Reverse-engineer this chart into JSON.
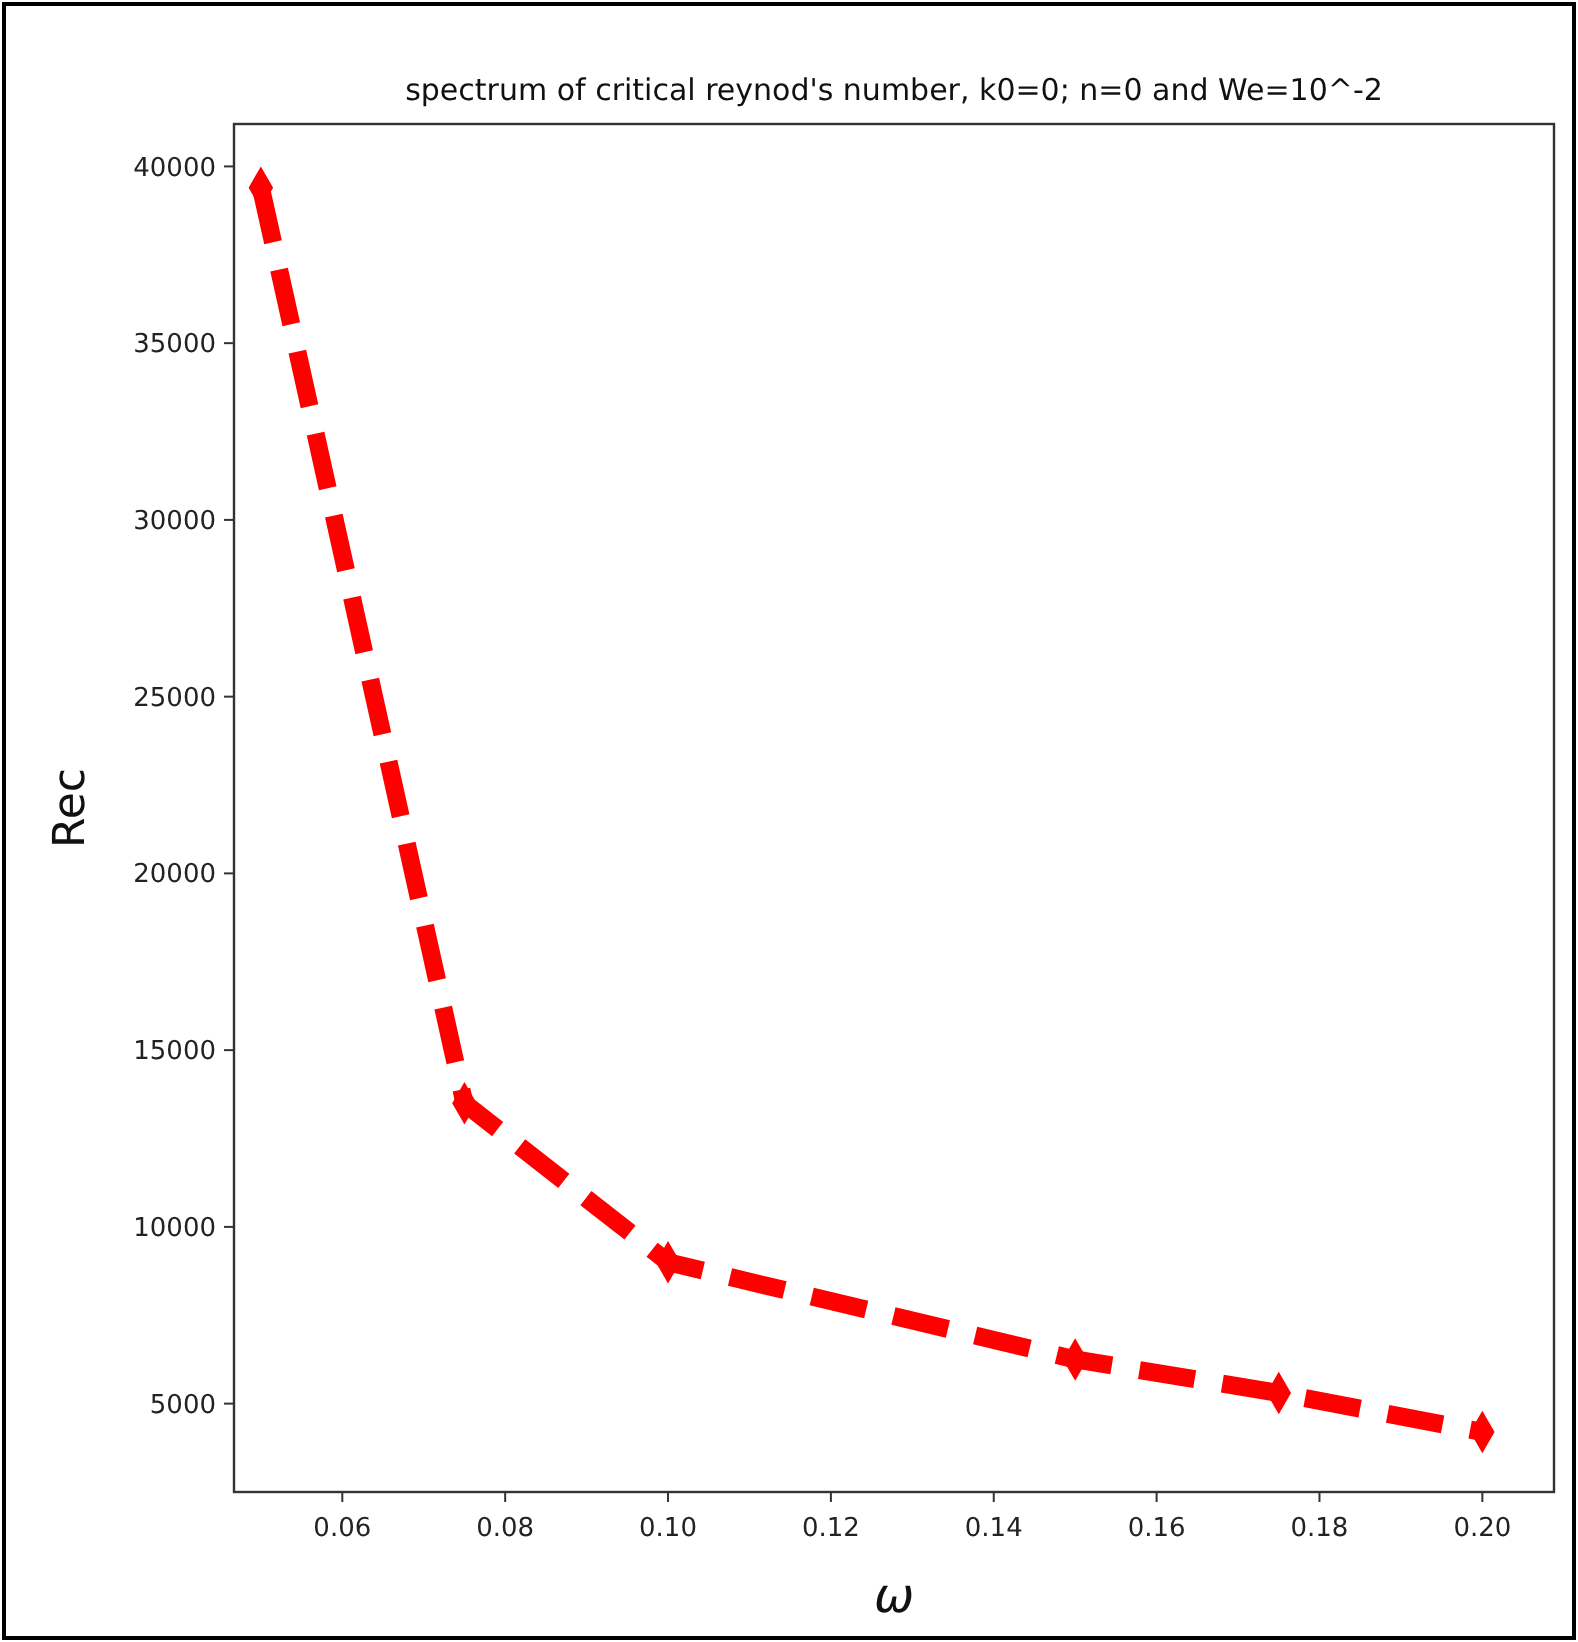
{
  "chart_data": {
    "type": "line",
    "title": "spectrum of critical reynod's number, k0=0; n=0 and We=10^-2",
    "xlabel": "ω",
    "ylabel": "Rec",
    "x": [
      0.05,
      0.075,
      0.1,
      0.15,
      0.175,
      0.2
    ],
    "series": [
      {
        "color": "#ff0000",
        "values": [
          39400,
          13500,
          9000,
          6250,
          5300,
          4200
        ]
      }
    ],
    "xlim": [
      0.0467,
      0.2088
    ],
    "xticks": [
      {
        "value": 0.06,
        "label": "0.06"
      },
      {
        "value": 0.08,
        "label": "0.08"
      },
      {
        "value": 0.1,
        "label": "0.10"
      },
      {
        "value": 0.12,
        "label": "0.12"
      },
      {
        "value": 0.14,
        "label": "0.14"
      },
      {
        "value": 0.16,
        "label": "0.16"
      },
      {
        "value": 0.18,
        "label": "0.18"
      },
      {
        "value": 0.2,
        "label": "0.20"
      }
    ],
    "ylim": [
      2500,
      41200
    ],
    "yticks": [
      5000,
      10000,
      15000,
      20000,
      25000,
      30000,
      35000,
      40000
    ],
    "marker": "diamond",
    "line_style": "dashed"
  }
}
